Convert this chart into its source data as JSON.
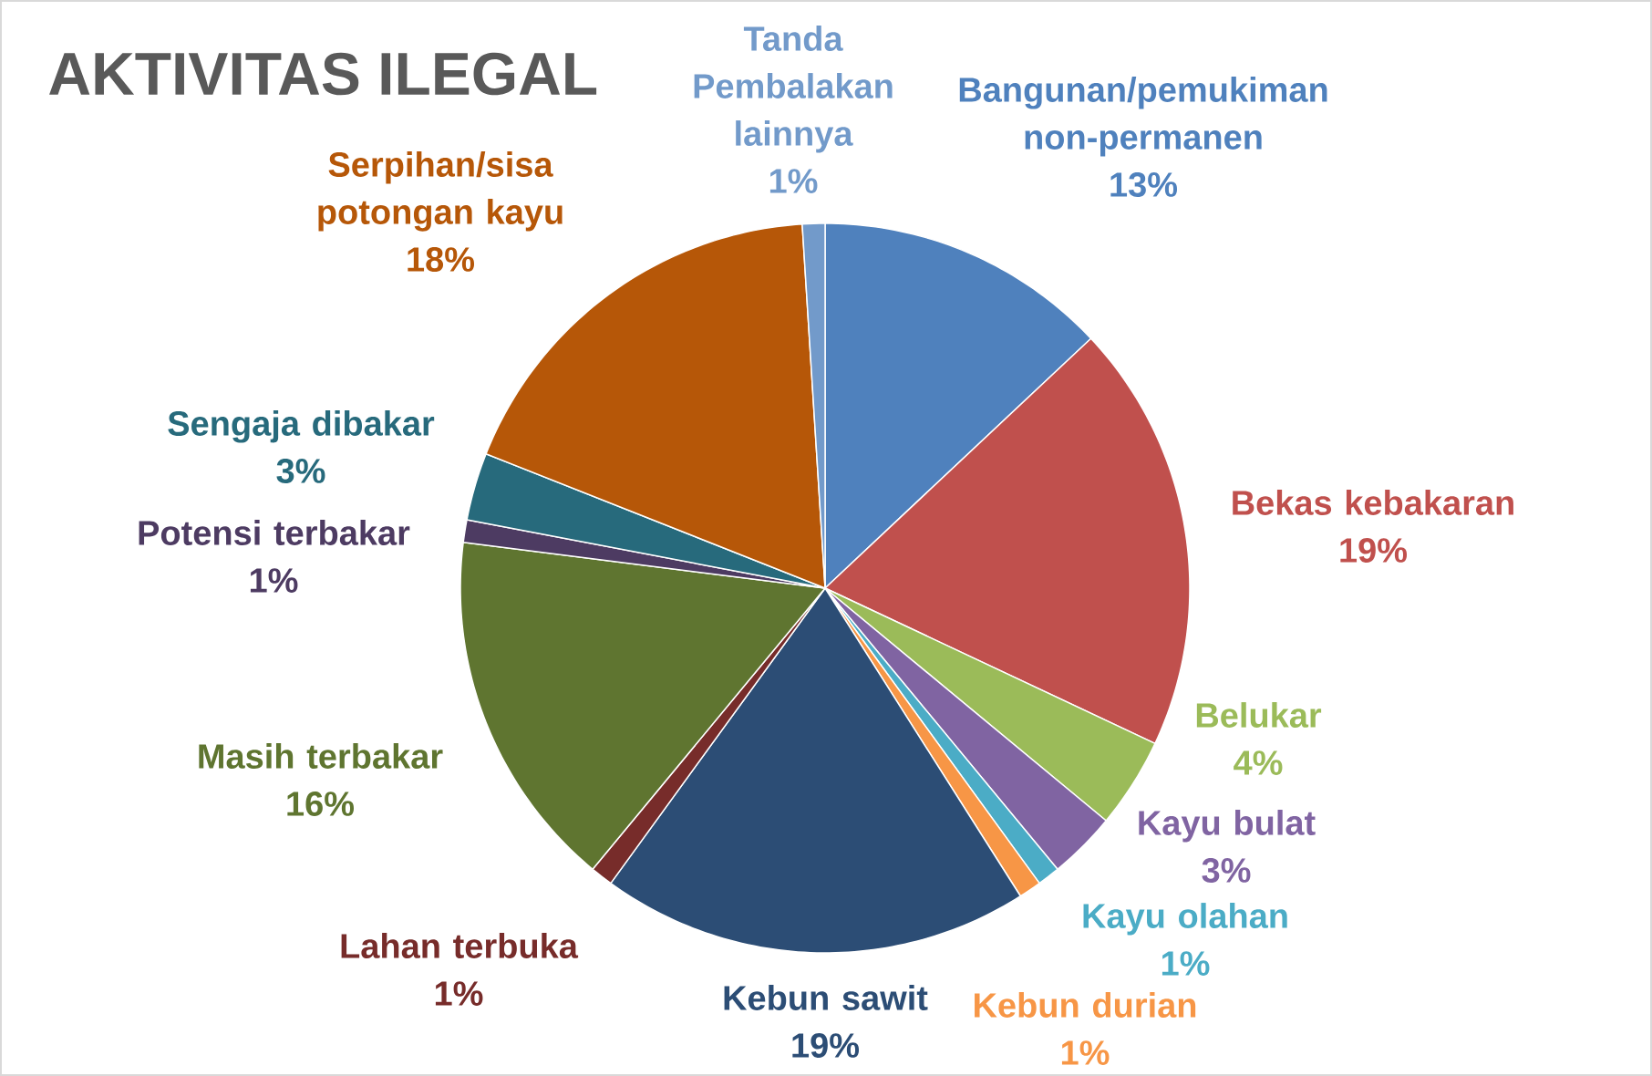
{
  "chart_data": {
    "type": "pie",
    "title": "AKTIVITAS ILEGAL",
    "categories": [
      "Bangunan/pemukiman non-permanen",
      "Bekas kebakaran",
      "Belukar",
      "Kayu bulat",
      "Kayu olahan",
      "Kebun durian",
      "Kebun sawit",
      "Lahan terbuka",
      "Masih terbakar",
      "Potensi terbakar",
      "Sengaja dibakar",
      "Serpihan/sisa potongan kayu",
      "Tanda Pembalakan lainnya"
    ],
    "values": [
      13,
      19,
      4,
      3,
      1,
      1,
      19,
      1,
      16,
      1,
      3,
      18,
      1
    ],
    "value_labels": [
      "13%",
      "19%",
      "4%",
      "3%",
      "1%",
      "1%",
      "19%",
      "1%",
      "16%",
      "1%",
      "3%",
      "18%",
      "1%"
    ],
    "colors": [
      "#4f81bd",
      "#c0504d",
      "#9bbb59",
      "#8064a2",
      "#4bacc6",
      "#f79646",
      "#2c4d75",
      "#772c2a",
      "#5f7530",
      "#4d3b62",
      "#276a7c",
      "#b65708",
      "#729aca"
    ]
  }
}
